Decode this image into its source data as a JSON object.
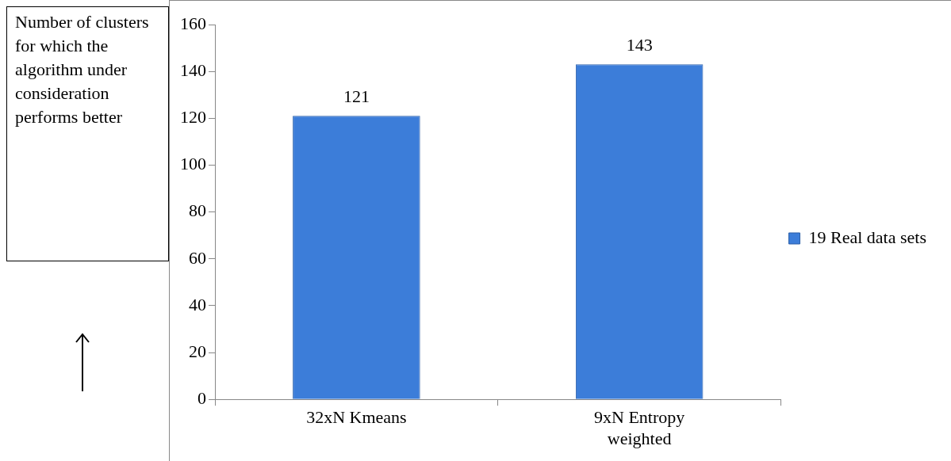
{
  "chart_data": {
    "type": "bar",
    "ylabel": "Number of clusters for which the algorithm under consideration performs better",
    "categories": [
      "32xN Kmeans",
      "9xN Entropy weighted"
    ],
    "series": [
      {
        "name": "19 Real data sets",
        "color": "#3c7dd9",
        "values": [
          121,
          143
        ]
      }
    ],
    "ylim": [
      0,
      160
    ],
    "yticks": [
      0,
      20,
      40,
      60,
      80,
      100,
      120,
      140,
      160
    ],
    "data_labels": true,
    "legend": "right",
    "grid": false
  }
}
